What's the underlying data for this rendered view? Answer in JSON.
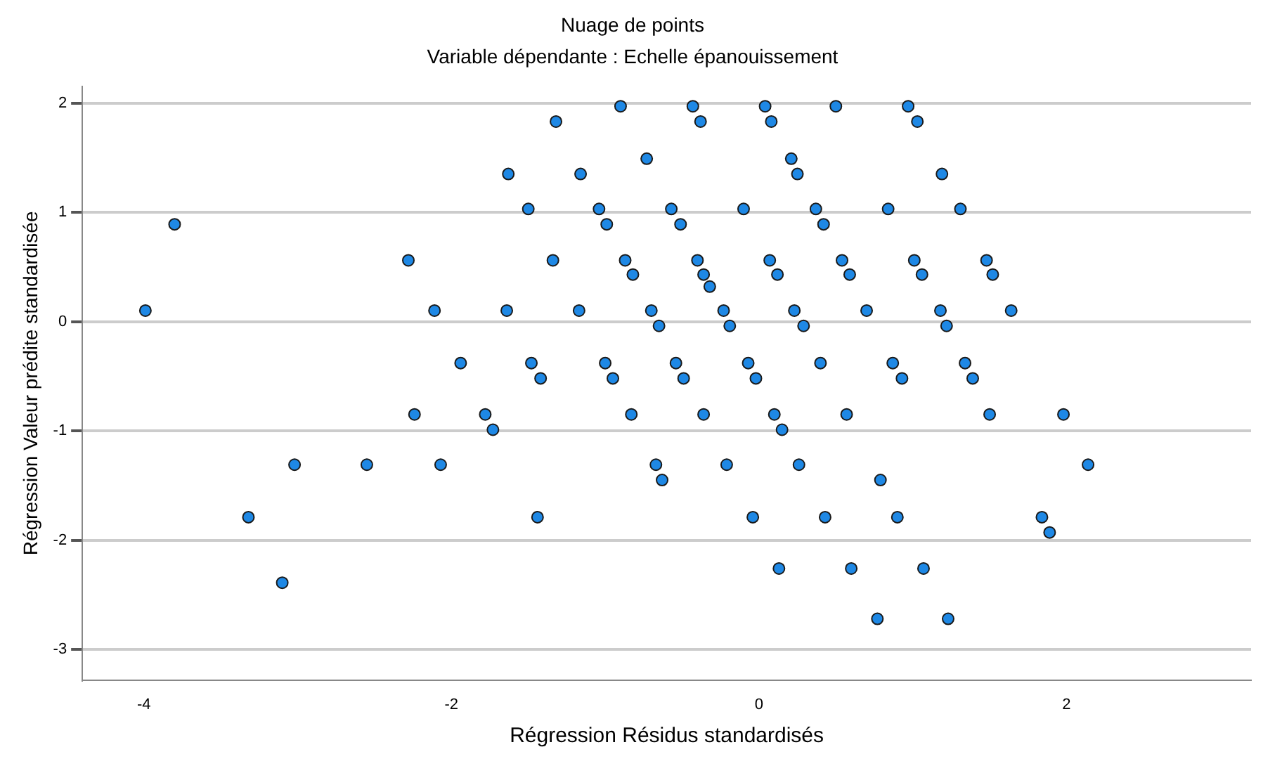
{
  "chart_data": {
    "type": "scatter",
    "title": "Nuage de points",
    "subtitle": "Variable dépendante : Echelle épanouissement",
    "xlabel": "Régression Résidus standardisés",
    "ylabel": "Régression Valeur prédite standardisée",
    "x": [
      -0.9,
      -0.43,
      0.04,
      0.5,
      0.97,
      -1.32,
      -0.38,
      0.08,
      1.03,
      -0.73,
      0.21,
      -1.63,
      -1.16,
      0.25,
      1.19,
      -1.5,
      -1.04,
      -0.57,
      -0.1,
      0.37,
      0.84,
      1.31,
      -3.8,
      -0.99,
      -0.51,
      0.42,
      -2.28,
      -1.34,
      -0.87,
      -0.4,
      0.07,
      0.54,
      1.01,
      1.48,
      -0.82,
      -0.36,
      0.12,
      0.59,
      1.06,
      1.52,
      -0.32,
      -3.99,
      -2.11,
      -1.64,
      -1.17,
      -0.7,
      -0.23,
      0.23,
      0.7,
      1.18,
      1.64,
      -0.65,
      -0.19,
      0.29,
      1.22,
      -1.94,
      -1.48,
      -1.0,
      -0.54,
      -0.07,
      0.4,
      0.87,
      1.34,
      -1.42,
      -0.95,
      -0.49,
      -0.02,
      0.93,
      1.39,
      -2.24,
      -1.78,
      -0.83,
      -0.36,
      0.1,
      0.57,
      1.5,
      1.98,
      -1.73,
      0.15,
      -3.02,
      -2.55,
      -2.07,
      -0.67,
      -0.21,
      0.26,
      2.14,
      -0.63,
      0.79,
      -3.32,
      -1.44,
      -0.04,
      0.43,
      0.9,
      1.84,
      1.89,
      0.13,
      0.6,
      1.07,
      -3.1,
      0.77,
      1.23
    ],
    "values": [
      1.97,
      1.97,
      1.97,
      1.97,
      1.97,
      1.83,
      1.83,
      1.83,
      1.83,
      1.49,
      1.49,
      1.35,
      1.35,
      1.35,
      1.35,
      1.03,
      1.03,
      1.03,
      1.03,
      1.03,
      1.03,
      1.03,
      0.89,
      0.89,
      0.89,
      0.89,
      0.56,
      0.56,
      0.56,
      0.56,
      0.56,
      0.56,
      0.56,
      0.56,
      0.43,
      0.43,
      0.43,
      0.43,
      0.43,
      0.43,
      0.32,
      0.1,
      0.1,
      0.1,
      0.1,
      0.1,
      0.1,
      0.1,
      0.1,
      0.1,
      0.1,
      -0.04,
      -0.04,
      -0.04,
      -0.04,
      -0.38,
      -0.38,
      -0.38,
      -0.38,
      -0.38,
      -0.38,
      -0.38,
      -0.38,
      -0.52,
      -0.52,
      -0.52,
      -0.52,
      -0.52,
      -0.52,
      -0.85,
      -0.85,
      -0.85,
      -0.85,
      -0.85,
      -0.85,
      -0.85,
      -0.85,
      -0.99,
      -0.99,
      -1.31,
      -1.31,
      -1.31,
      -1.31,
      -1.31,
      -1.31,
      -1.31,
      -1.45,
      -1.45,
      -1.79,
      -1.79,
      -1.79,
      -1.79,
      -1.79,
      -1.79,
      -1.93,
      -2.26,
      -2.26,
      -2.26,
      -2.39,
      -2.72,
      -2.72
    ],
    "color": "#1e88e5",
    "marker": "circle",
    "xlim": [
      -4.4,
      3.2
    ],
    "ylim": [
      -3.28,
      2.15
    ],
    "xticks": [
      -4,
      -2,
      0,
      2
    ],
    "yticks": [
      -3,
      -2,
      -1,
      0,
      1,
      2
    ],
    "grid": "y"
  }
}
